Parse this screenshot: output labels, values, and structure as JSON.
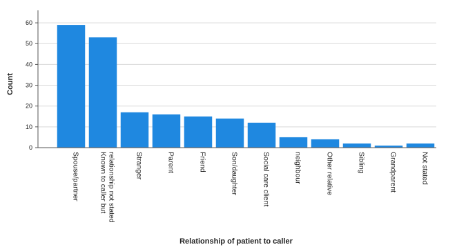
{
  "chart_data": {
    "type": "bar",
    "xlabel": "Relationship of patient to caller",
    "ylabel": "Count",
    "ylim": [
      0,
      66
    ],
    "yticks": [
      0,
      10,
      20,
      30,
      40,
      50,
      60
    ],
    "grid": "horizontal",
    "bar_color": "#1f88e0",
    "categories": [
      [
        "Spouse/partner"
      ],
      [
        "Known to caller but",
        "relationship not stated"
      ],
      [
        "Stranger"
      ],
      [
        "Parent"
      ],
      [
        "Friend"
      ],
      [
        "Son/daughter"
      ],
      [
        "Social care client"
      ],
      [
        "neighbour"
      ],
      [
        "Other relative"
      ],
      [
        "Sibling"
      ],
      [
        "Grandparent"
      ],
      [
        "Not stated"
      ]
    ],
    "values": [
      59,
      53,
      17,
      16,
      15,
      14,
      12,
      5,
      4,
      2,
      1,
      2
    ]
  }
}
